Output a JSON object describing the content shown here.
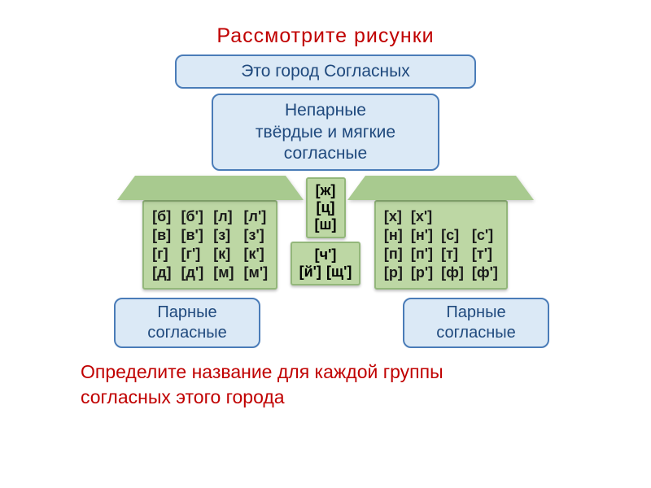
{
  "colors": {
    "title": "#c00000",
    "box_bg": "#dbe9f6",
    "box_border": "#4a7cb8",
    "box_text": "#1f497d",
    "house_bg": "#bdd7a4",
    "house_border": "#93b77a",
    "roof_bg": "#a8ca8f",
    "footer": "#c00000"
  },
  "title": "Рассмотрите    рисунки",
  "box_top": "Это   город   Согласных",
  "box_mid_l1": "Непарные",
  "box_mid_l2": "твёрдые и мягкие",
  "box_mid_l3": "согласные",
  "left_pairs": [
    [
      "[б]",
      "[б']",
      "[л]",
      "[л']"
    ],
    [
      "[в]",
      "[в']",
      "[з]",
      "[з']"
    ],
    [
      "[г]",
      "[г']",
      "[к]",
      "[к']"
    ],
    [
      "[д]",
      "[д']",
      "[м]",
      "[м']"
    ]
  ],
  "center_top": [
    "[ж]",
    "[ц]",
    "[ш]"
  ],
  "center_bottom": [
    [
      "[ч']"
    ],
    [
      "[й']",
      "[щ']"
    ]
  ],
  "right_pairs": [
    [
      "[х]",
      "[х']",
      "",
      ""
    ],
    [
      "[н]",
      "[н']",
      "[с]",
      "[с']"
    ],
    [
      "[п]",
      "[п']",
      "[т]",
      "[т']"
    ],
    [
      "[р]",
      "[р']",
      "[ф]",
      "[ф']"
    ]
  ],
  "paired_left_l1": "Парные",
  "paired_left_l2": "согласные",
  "paired_right_l1": "Парные",
  "paired_right_l2": "согласные",
  "footer_l1": "Определите   название   для  каждой   группы",
  "footer_l2": "согласных   этого   города"
}
